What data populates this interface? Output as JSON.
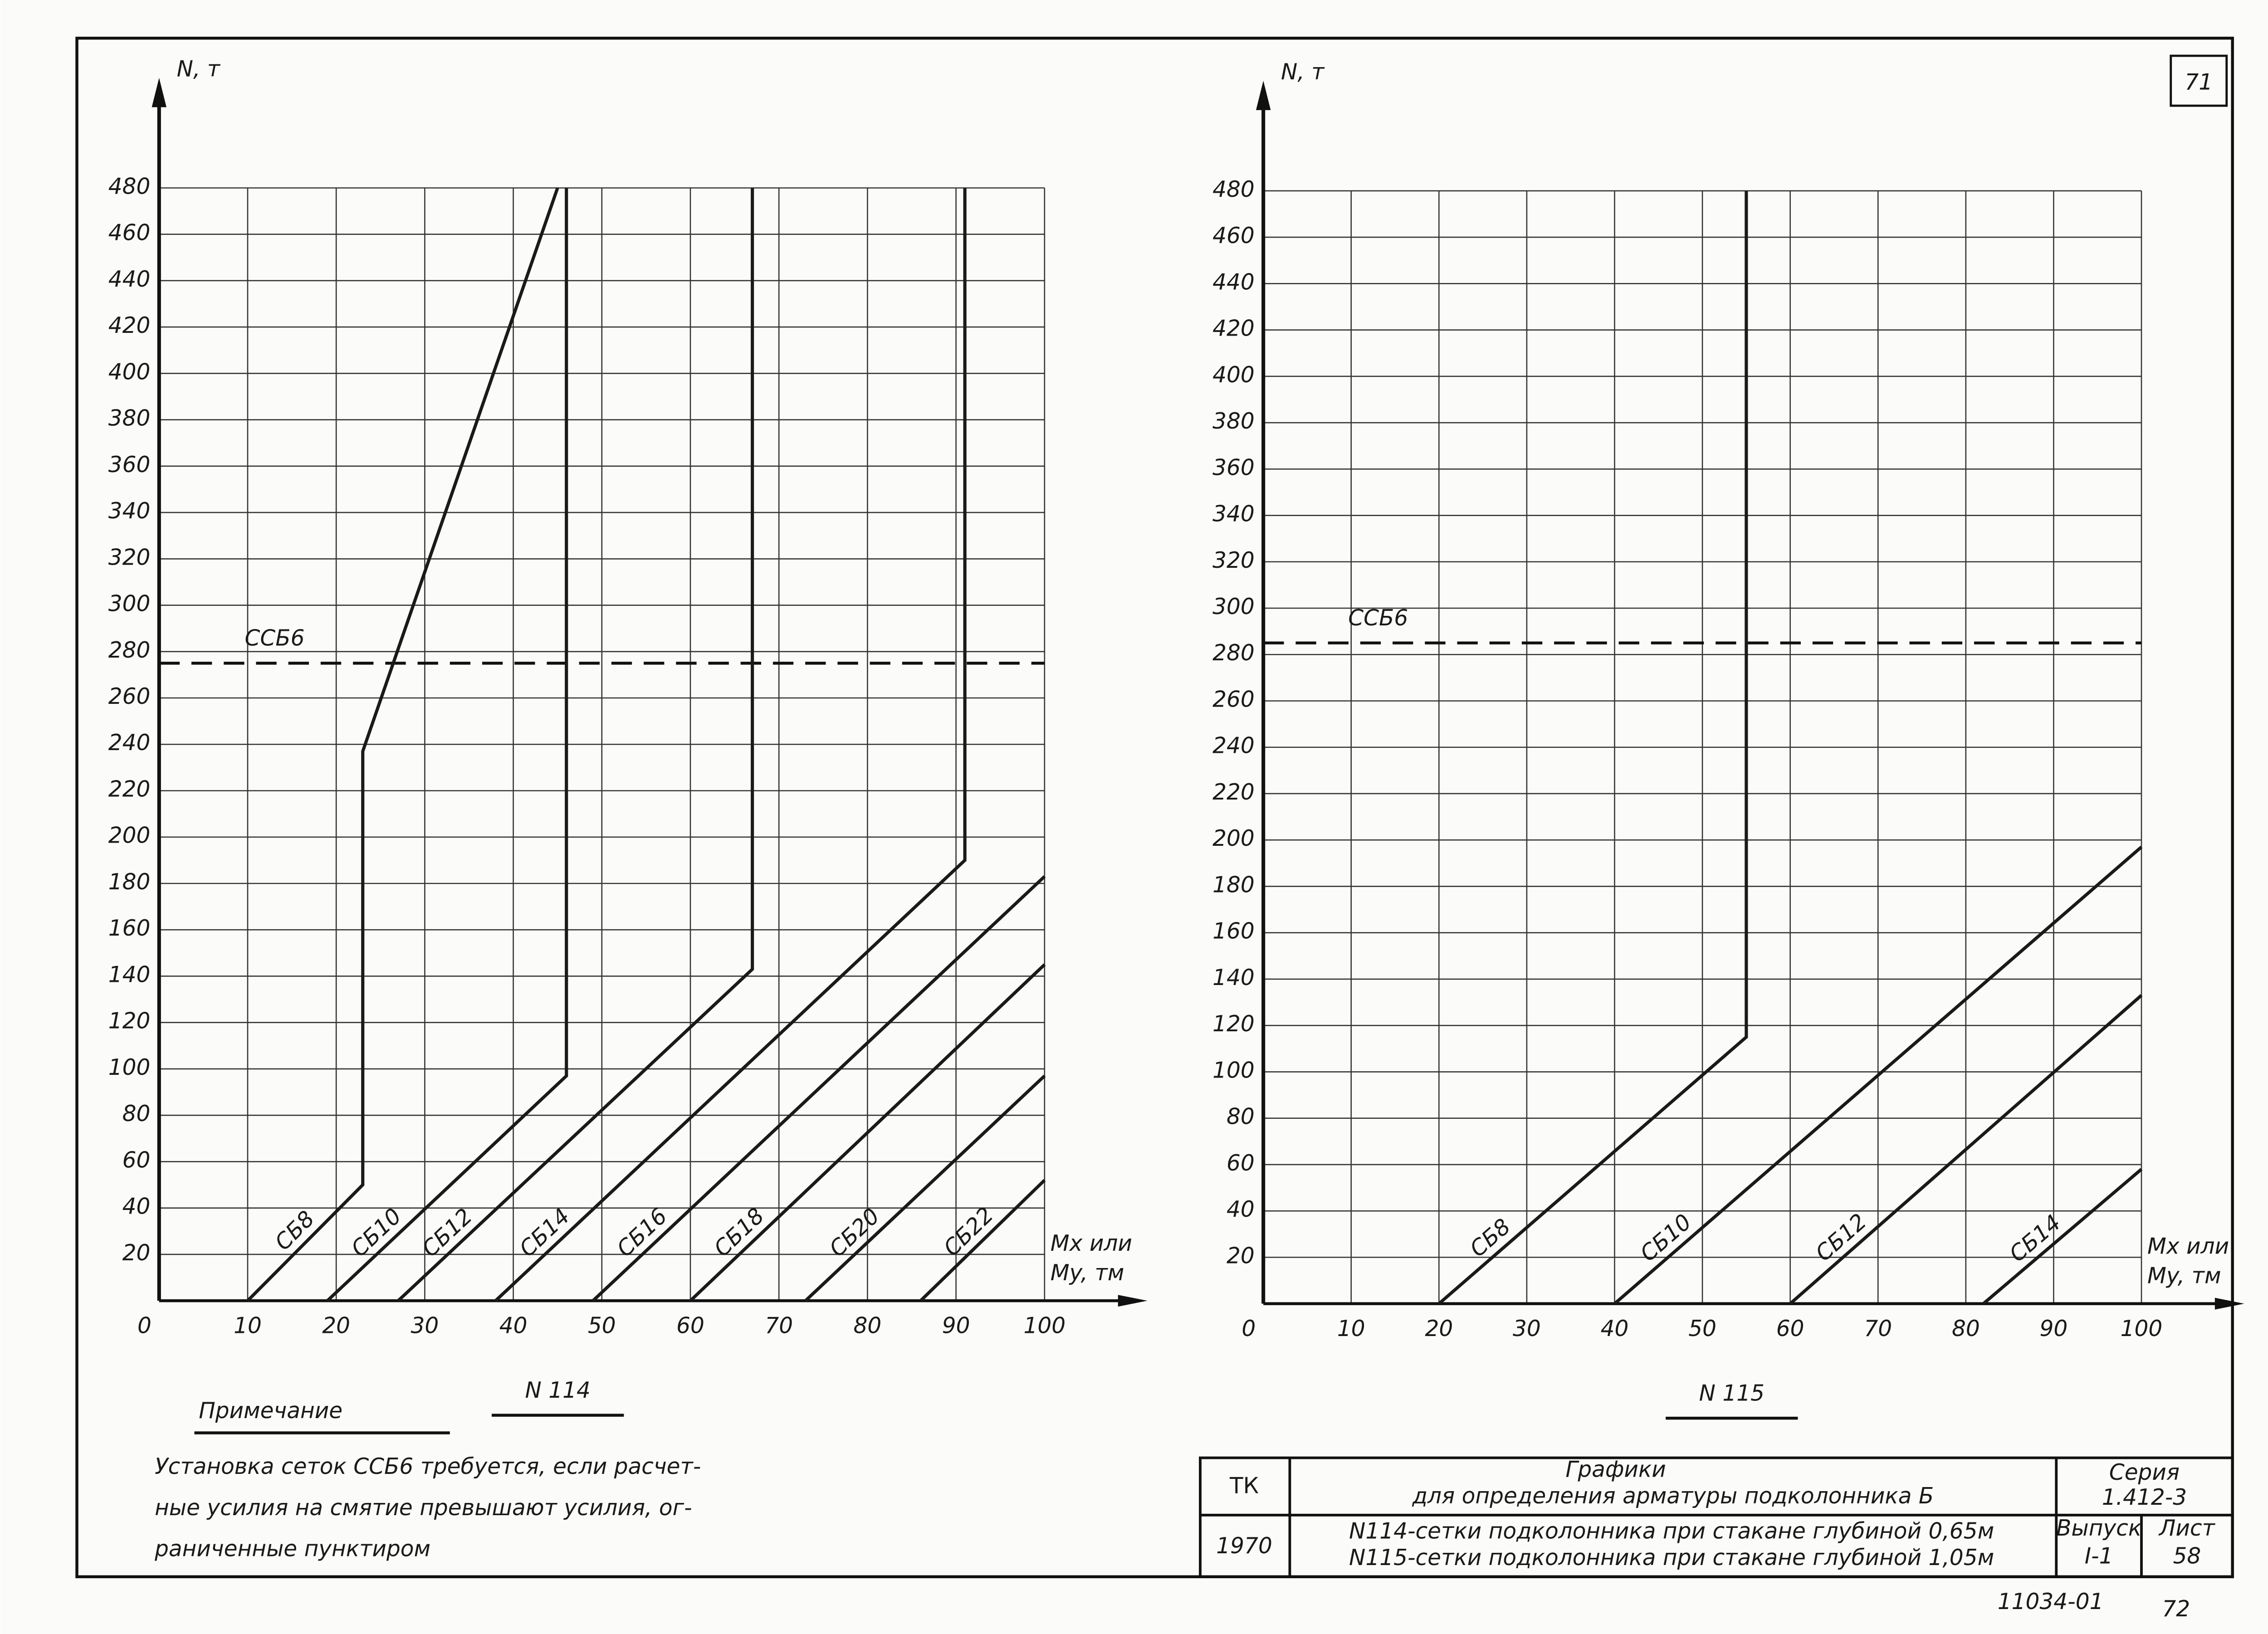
{
  "page_number": "71",
  "chart_data": [
    {
      "type": "line",
      "y_label": "N, т",
      "x_label": [
        "Mx или",
        "My, тм"
      ],
      "caption": "N 114",
      "xlim": [
        0,
        100
      ],
      "xticks": [
        0,
        10,
        20,
        30,
        40,
        50,
        60,
        70,
        80,
        90,
        100
      ],
      "ylim": [
        0,
        480
      ],
      "yticks": [
        20,
        40,
        60,
        80,
        100,
        120,
        140,
        160,
        180,
        200,
        220,
        240,
        260,
        280,
        300,
        320,
        340,
        360,
        380,
        400,
        420,
        440,
        460,
        480
      ],
      "grid": true,
      "color": "#1a1a1a",
      "threshold": {
        "label": "ССБ6",
        "value": 275
      },
      "series": [
        {
          "name": "СБ8",
          "x": [
            10,
            23,
            23,
            45
          ],
          "values": [
            0,
            50,
            237,
            480
          ]
        },
        {
          "name": "СБ10",
          "x": [
            19,
            46,
            46
          ],
          "values": [
            0,
            97,
            480
          ]
        },
        {
          "name": "СБ12",
          "x": [
            27,
            67,
            67
          ],
          "values": [
            0,
            143,
            480
          ]
        },
        {
          "name": "СБ14",
          "x": [
            38,
            91,
            91
          ],
          "values": [
            0,
            190,
            480
          ]
        },
        {
          "name": "СБ16",
          "x": [
            49,
            100
          ],
          "values": [
            0,
            183
          ]
        },
        {
          "name": "СБ18",
          "x": [
            60,
            100
          ],
          "values": [
            0,
            145
          ]
        },
        {
          "name": "СБ20",
          "x": [
            73,
            100
          ],
          "values": [
            0,
            97
          ]
        },
        {
          "name": "СБ22",
          "x": [
            86,
            100
          ],
          "values": [
            0,
            52
          ]
        }
      ]
    },
    {
      "type": "line",
      "y_label": "N, т",
      "x_label": [
        "Mx или",
        "My, тм"
      ],
      "caption": "N 115",
      "xlim": [
        0,
        100
      ],
      "xticks": [
        0,
        10,
        20,
        30,
        40,
        50,
        60,
        70,
        80,
        90,
        100
      ],
      "ylim": [
        0,
        480
      ],
      "yticks": [
        20,
        40,
        60,
        80,
        100,
        120,
        140,
        160,
        180,
        200,
        220,
        240,
        260,
        280,
        300,
        320,
        340,
        360,
        380,
        400,
        420,
        440,
        460,
        480
      ],
      "grid": true,
      "color": "#1a1a1a",
      "threshold": {
        "label": "ССБ6",
        "value": 285
      },
      "series": [
        {
          "name": "СБ8",
          "x": [
            20,
            55,
            55
          ],
          "values": [
            0,
            115,
            480
          ]
        },
        {
          "name": "СБ10",
          "x": [
            40,
            100
          ],
          "values": [
            0,
            197
          ]
        },
        {
          "name": "СБ12",
          "x": [
            60,
            100
          ],
          "values": [
            0,
            133
          ]
        },
        {
          "name": "СБ14",
          "x": [
            82,
            100
          ],
          "values": [
            0,
            58
          ]
        }
      ]
    }
  ],
  "note": {
    "heading": "Примечание",
    "lines": [
      "Установка сеток ССБ6 требуется, если расчет-",
      "ные усилия на смятие превышают усилия, ог-",
      "раниченные пунктиром"
    ]
  },
  "title_block": {
    "org": "ТК",
    "year": "1970",
    "title": [
      "Графики",
      "для определения арматуры подколонника Б"
    ],
    "descriptions": [
      "N114-сетки подколонника при стакане глубиной 0,65м",
      "N115-сетки подколонника при стакане глубиной 1,05м"
    ],
    "series": {
      "label": "Серия",
      "value": "1.412-3"
    },
    "issue": {
      "label": "Выпуск",
      "value": "I-1"
    },
    "sheet": {
      "label": "Лист",
      "value": "58"
    }
  },
  "archive_number": "11034-01",
  "bottom_page": "72"
}
